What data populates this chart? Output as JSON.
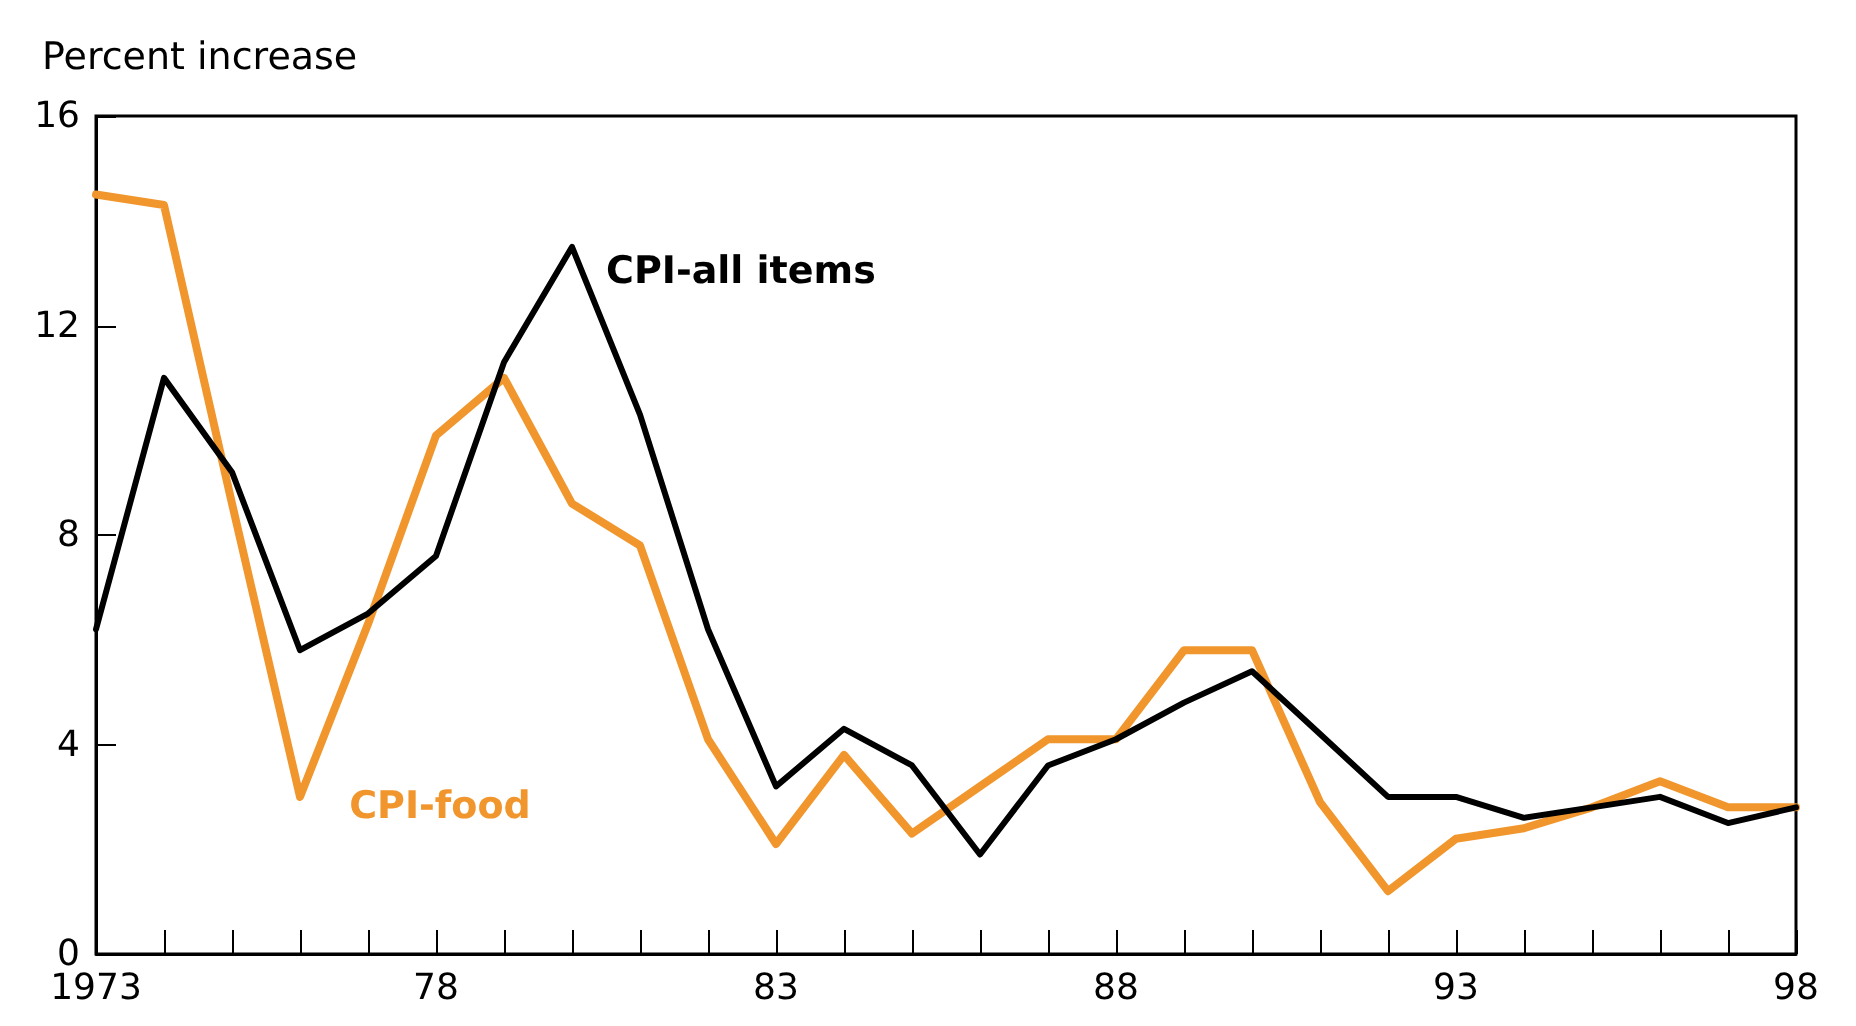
{
  "chart_data": {
    "type": "line",
    "ylabel": "Percent increase",
    "x": [
      1973,
      1974,
      1975,
      1976,
      1977,
      1978,
      1979,
      1980,
      1981,
      1982,
      1983,
      1984,
      1985,
      1986,
      1987,
      1988,
      1989,
      1990,
      1991,
      1992,
      1993,
      1994,
      1995,
      1996,
      1997,
      1998
    ],
    "series": [
      {
        "name": "CPI-all items",
        "color": "#000000",
        "values": [
          6.2,
          11.0,
          9.2,
          5.8,
          6.5,
          7.6,
          11.3,
          13.5,
          10.3,
          6.2,
          3.2,
          4.3,
          3.6,
          1.9,
          3.6,
          4.1,
          4.8,
          5.4,
          4.2,
          3.0,
          3.0,
          2.6,
          2.8,
          3.0,
          2.5,
          2.8
        ]
      },
      {
        "name": "CPI-food",
        "color": "#f0962d",
        "values": [
          14.5,
          14.3,
          8.6,
          3.0,
          6.3,
          9.9,
          11.0,
          8.6,
          7.8,
          4.1,
          2.1,
          3.8,
          2.3,
          3.2,
          4.1,
          4.1,
          5.8,
          5.8,
          2.9,
          1.2,
          2.2,
          2.4,
          2.8,
          3.3,
          2.8,
          2.8
        ]
      }
    ],
    "xlim": [
      1973,
      1998
    ],
    "xticks": [
      1973,
      {
        "value": 1974,
        "label": null
      },
      {
        "value": 1975,
        "label": null
      },
      {
        "value": 1976,
        "label": null
      },
      {
        "value": 1977,
        "label": null
      },
      {
        "value": 1978,
        "label": "78"
      },
      {
        "value": 1979,
        "label": null
      },
      {
        "value": 1980,
        "label": null
      },
      {
        "value": 1981,
        "label": null
      },
      {
        "value": 1982,
        "label": null
      },
      {
        "value": 1983,
        "label": "83"
      },
      {
        "value": 1984,
        "label": null
      },
      {
        "value": 1985,
        "label": null
      },
      {
        "value": 1986,
        "label": null
      },
      {
        "value": 1987,
        "label": null
      },
      {
        "value": 1988,
        "label": "88"
      },
      {
        "value": 1989,
        "label": null
      },
      {
        "value": 1990,
        "label": null
      },
      {
        "value": 1991,
        "label": null
      },
      {
        "value": 1992,
        "label": null
      },
      {
        "value": 1993,
        "label": "93"
      },
      {
        "value": 1994,
        "label": null
      },
      {
        "value": 1995,
        "label": null
      },
      {
        "value": 1996,
        "label": null
      },
      {
        "value": 1997,
        "label": null
      },
      {
        "value": 1998,
        "label": "98"
      }
    ],
    "ylim": [
      0,
      16
    ],
    "yticks": [
      0,
      4,
      8,
      12,
      16
    ],
    "grid": false,
    "legend": false,
    "marker": "none",
    "line_style": "solid"
  }
}
